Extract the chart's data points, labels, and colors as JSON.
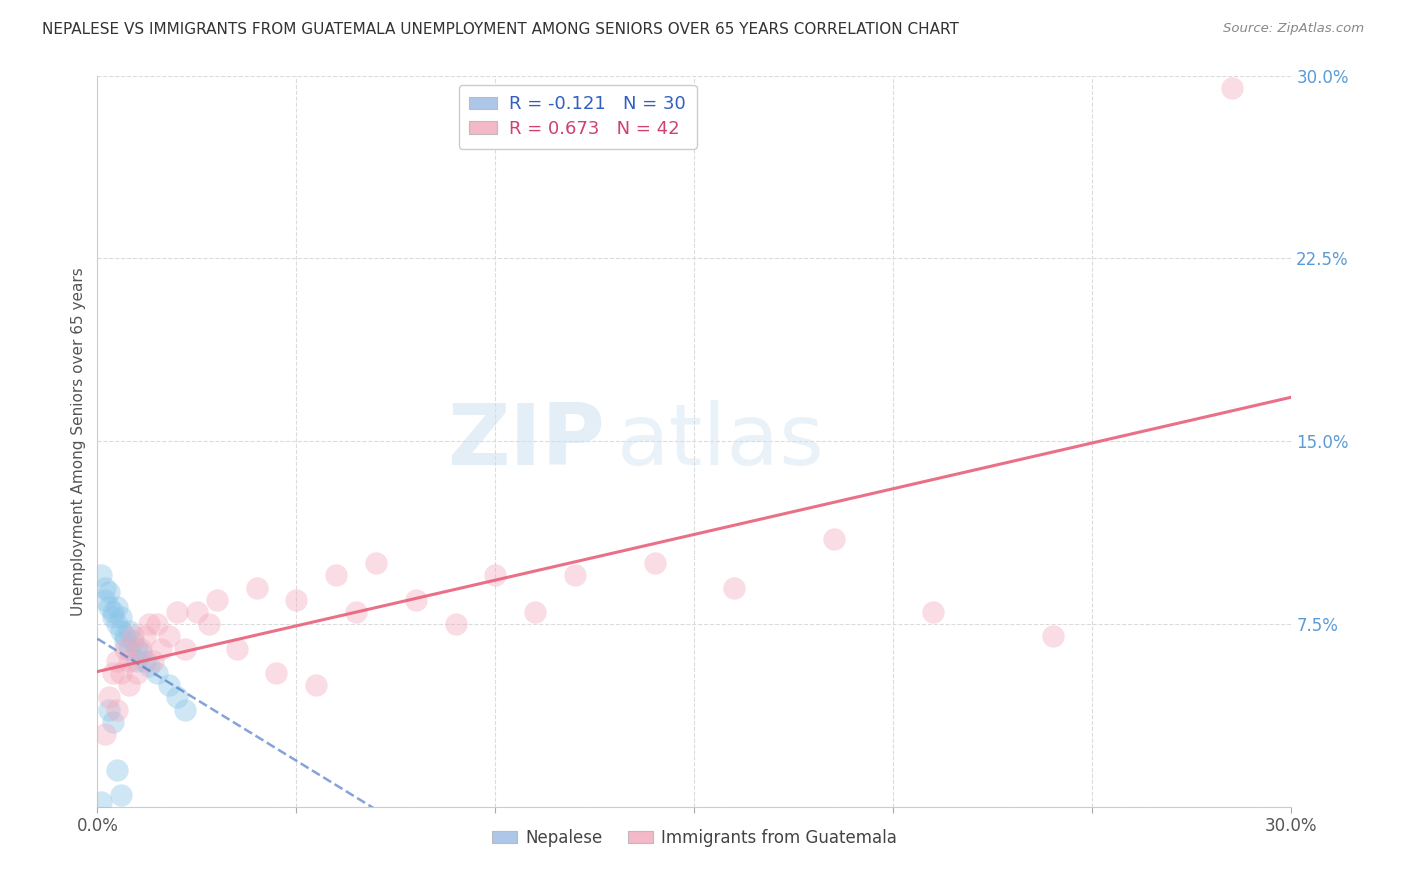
{
  "title": "NEPALESE VS IMMIGRANTS FROM GUATEMALA UNEMPLOYMENT AMONG SENIORS OVER 65 YEARS CORRELATION CHART",
  "source": "Source: ZipAtlas.com",
  "ylabel": "Unemployment Among Seniors over 65 years",
  "xlim": [
    0.0,
    0.3
  ],
  "ylim": [
    0.0,
    0.3
  ],
  "nepalese_color": "#6aaed6",
  "nepalese_scatter_color": "#89c4e8",
  "guatemala_color": "#f4879a",
  "guatemala_scatter_color": "#f4a8bc",
  "nepalese_line_color": "#4472c4",
  "guatemala_line_color": "#e8607a",
  "nepalese_R": -0.121,
  "nepalese_N": 30,
  "guatemala_R": 0.673,
  "guatemala_N": 42,
  "watermark_color": "#cce0f0",
  "background_color": "#ffffff",
  "grid_color": "#d8d8d8",
  "nepalese_x": [
    0.001,
    0.002,
    0.002,
    0.003,
    0.003,
    0.004,
    0.004,
    0.005,
    0.005,
    0.006,
    0.006,
    0.007,
    0.007,
    0.008,
    0.008,
    0.009,
    0.01,
    0.01,
    0.011,
    0.012,
    0.013,
    0.015,
    0.018,
    0.02,
    0.022,
    0.003,
    0.004,
    0.005,
    0.006,
    0.001
  ],
  "nepalese_y": [
    0.095,
    0.09,
    0.085,
    0.088,
    0.082,
    0.08,
    0.078,
    0.082,
    0.075,
    0.078,
    0.072,
    0.07,
    0.068,
    0.072,
    0.065,
    0.068,
    0.065,
    0.06,
    0.063,
    0.06,
    0.058,
    0.055,
    0.05,
    0.045,
    0.04,
    0.04,
    0.035,
    0.015,
    0.005,
    0.002
  ],
  "guatemala_x": [
    0.002,
    0.003,
    0.004,
    0.005,
    0.005,
    0.006,
    0.007,
    0.008,
    0.008,
    0.009,
    0.01,
    0.011,
    0.012,
    0.013,
    0.014,
    0.015,
    0.016,
    0.018,
    0.02,
    0.022,
    0.025,
    0.028,
    0.03,
    0.035,
    0.04,
    0.045,
    0.05,
    0.055,
    0.06,
    0.065,
    0.07,
    0.08,
    0.09,
    0.1,
    0.11,
    0.12,
    0.14,
    0.16,
    0.185,
    0.21,
    0.24,
    0.285
  ],
  "guatemala_y": [
    0.03,
    0.045,
    0.055,
    0.04,
    0.06,
    0.055,
    0.065,
    0.06,
    0.05,
    0.07,
    0.055,
    0.065,
    0.07,
    0.075,
    0.06,
    0.075,
    0.065,
    0.07,
    0.08,
    0.065,
    0.08,
    0.075,
    0.085,
    0.065,
    0.09,
    0.055,
    0.085,
    0.05,
    0.095,
    0.08,
    0.1,
    0.085,
    0.075,
    0.095,
    0.08,
    0.095,
    0.1,
    0.09,
    0.11,
    0.08,
    0.07,
    0.295
  ]
}
